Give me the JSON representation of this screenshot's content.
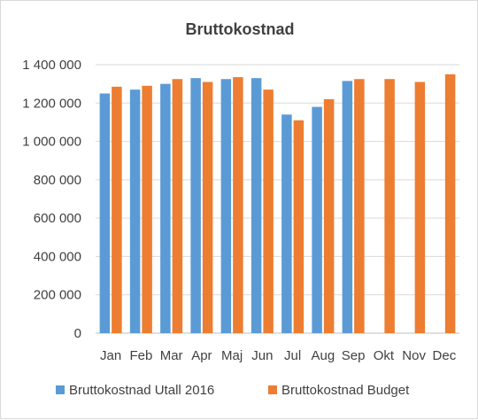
{
  "chart_data": {
    "type": "bar",
    "title": "Bruttokostnad",
    "xlabel": "",
    "ylabel": "",
    "categories": [
      "Jan",
      "Feb",
      "Mar",
      "Apr",
      "Maj",
      "Jun",
      "Jul",
      "Aug",
      "Sep",
      "Okt",
      "Nov",
      "Dec"
    ],
    "series": [
      {
        "name": "Bruttokostnad Utall 2016",
        "color": "#5b9bd5",
        "values": [
          1250000,
          1270000,
          1300000,
          1330000,
          1325000,
          1330000,
          1140000,
          1180000,
          1315000,
          null,
          null,
          null
        ]
      },
      {
        "name": "Bruttokostnad Budget",
        "color": "#ed7d31",
        "values": [
          1285000,
          1290000,
          1325000,
          1310000,
          1335000,
          1270000,
          1110000,
          1220000,
          1325000,
          1325000,
          1310000,
          1350000
        ]
      }
    ],
    "ylim": [
      0,
      1400000
    ],
    "yticks": [
      0,
      200000,
      400000,
      600000,
      800000,
      1000000,
      1200000,
      1400000
    ],
    "ytick_labels": [
      "0",
      "200 000",
      "400 000",
      "600 000",
      "800 000",
      "1 000 000",
      "1 200 000",
      "1 400 000"
    ],
    "grid": true,
    "legend_position": "bottom"
  }
}
